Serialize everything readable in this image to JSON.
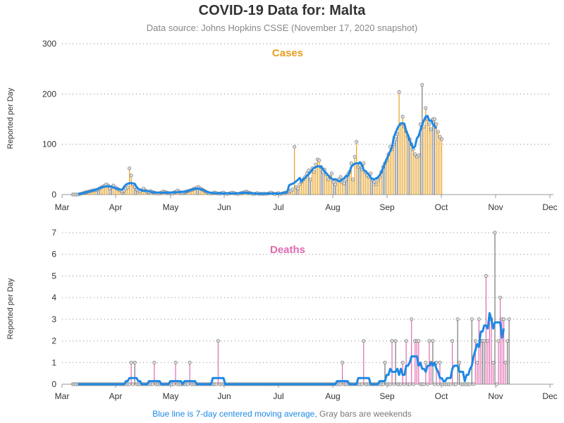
{
  "title": "COVID-19 Data for: Malta",
  "subtitle": "Data source: Johns Hopkins CSSE (November 17, 2020 snapshot)",
  "footnote": {
    "blue": "Blue line is 7-day centered moving average,",
    "gray": "Gray bars are weekends"
  },
  "colors": {
    "cases": "#e6a020",
    "deaths": "#e06ab0",
    "average": "#1e88e5",
    "weekend": "#888888"
  },
  "chart_data": [
    {
      "type": "bar",
      "title": "Cases",
      "ylabel": "Reported per Day",
      "ylim": [
        0,
        300
      ],
      "yticks": [
        0,
        100,
        200,
        300
      ],
      "xticks": [
        "Mar",
        "Apr",
        "May",
        "Jun",
        "Jul",
        "Aug",
        "Sep",
        "Oct",
        "Nov",
        "Dec"
      ],
      "x_start": "2020-03-07",
      "values": [
        0,
        0,
        0,
        0,
        1,
        2,
        3,
        4,
        5,
        6,
        7,
        8,
        8,
        9,
        10,
        12,
        14,
        16,
        18,
        20,
        18,
        12,
        15,
        18,
        14,
        12,
        10,
        8,
        6,
        8,
        12,
        14,
        52,
        38,
        20,
        15,
        10,
        8,
        6,
        9,
        12,
        8,
        6,
        5,
        7,
        5,
        4,
        3,
        2,
        3,
        4,
        6,
        5,
        4,
        3,
        3,
        2,
        4,
        5,
        8,
        6,
        4,
        3,
        5,
        6,
        7,
        8,
        9,
        11,
        12,
        14,
        15,
        12,
        10,
        8,
        6,
        4,
        3,
        2,
        3,
        4,
        3,
        2,
        2,
        3,
        4,
        2,
        1,
        2,
        3,
        4,
        3,
        2,
        1,
        2,
        3,
        4,
        5,
        6,
        4,
        3,
        2,
        1,
        2,
        3,
        1,
        2,
        1,
        2,
        1,
        2,
        3,
        4,
        2,
        1,
        2,
        3,
        1,
        2,
        3,
        4,
        5,
        6,
        8,
        10,
        95,
        15,
        12,
        20,
        25,
        30,
        35,
        42,
        48,
        30,
        52,
        45,
        60,
        70,
        68,
        55,
        45,
        50,
        40,
        30,
        35,
        42,
        25,
        20,
        28,
        30,
        35,
        25,
        22,
        30,
        40,
        45,
        62,
        30,
        75,
        105,
        55,
        58,
        50,
        62,
        45,
        38,
        35,
        42,
        30,
        25,
        20,
        28,
        35,
        45,
        55,
        62,
        68,
        80,
        95,
        90,
        100,
        110,
        120,
        204,
        140,
        155,
        135,
        125,
        115,
        110,
        100,
        90,
        80,
        75,
        78,
        140,
        218,
        135,
        172,
        150,
        140,
        130,
        150,
        150,
        140,
        125,
        115,
        110
      ]
    },
    {
      "type": "bar",
      "title": "Deaths",
      "ylabel": "Reported per Day",
      "ylim": [
        0,
        7
      ],
      "yticks": [
        0,
        1,
        2,
        3,
        4,
        5,
        6,
        7
      ],
      "xticks": [
        "Mar",
        "Apr",
        "May",
        "Jun",
        "Jul",
        "Aug",
        "Sep",
        "Oct",
        "Nov",
        "Dec"
      ],
      "x_start": "2020-03-07",
      "values": [
        0,
        0,
        0,
        0,
        0,
        0,
        0,
        0,
        0,
        0,
        0,
        0,
        0,
        0,
        0,
        0,
        0,
        0,
        0,
        0,
        0,
        0,
        0,
        0,
        0,
        0,
        0,
        0,
        0,
        0,
        0,
        0,
        0,
        1,
        0,
        1,
        0,
        0,
        0,
        0,
        0,
        0,
        0,
        0,
        0,
        0,
        1,
        0,
        0,
        0,
        0,
        0,
        0,
        0,
        0,
        0,
        0,
        0,
        1,
        0,
        0,
        0,
        0,
        0,
        0,
        0,
        1,
        0,
        0,
        0,
        0,
        0,
        0,
        0,
        0,
        0,
        0,
        0,
        0,
        0,
        0,
        0,
        2,
        0,
        0,
        0,
        0,
        0,
        0,
        0,
        0,
        0,
        0,
        0,
        0,
        0,
        0,
        0,
        0,
        0,
        0,
        0,
        0,
        0,
        0,
        0,
        0,
        0,
        0,
        0,
        0,
        0,
        0,
        0,
        0,
        0,
        0,
        0,
        0,
        0,
        0,
        0,
        0,
        0,
        0,
        0,
        0,
        0,
        0,
        0,
        0,
        0,
        0,
        0,
        0,
        0,
        0,
        0,
        0,
        0,
        0,
        0,
        0,
        0,
        0,
        0,
        0,
        0,
        0,
        0,
        0,
        0,
        1,
        0,
        0,
        0,
        0,
        0,
        0,
        0,
        0,
        0,
        0,
        0,
        2,
        0,
        0,
        0,
        0,
        0,
        0,
        0,
        0,
        0,
        0,
        0,
        1,
        0,
        0,
        0,
        2,
        0,
        2,
        0,
        0,
        0,
        1,
        0,
        2,
        0,
        0,
        3,
        0,
        2,
        2,
        2,
        0,
        0,
        0,
        1,
        0,
        2,
        1,
        2,
        0,
        1,
        0,
        1,
        0,
        0,
        0,
        0,
        0,
        0,
        2,
        0,
        0,
        3,
        1,
        0,
        0,
        0,
        0,
        0,
        0,
        3,
        0,
        2,
        1,
        3,
        2,
        2,
        2,
        5,
        2,
        3,
        3,
        1,
        7,
        0,
        2,
        4,
        3,
        3,
        1,
        2,
        3
      ]
    }
  ]
}
